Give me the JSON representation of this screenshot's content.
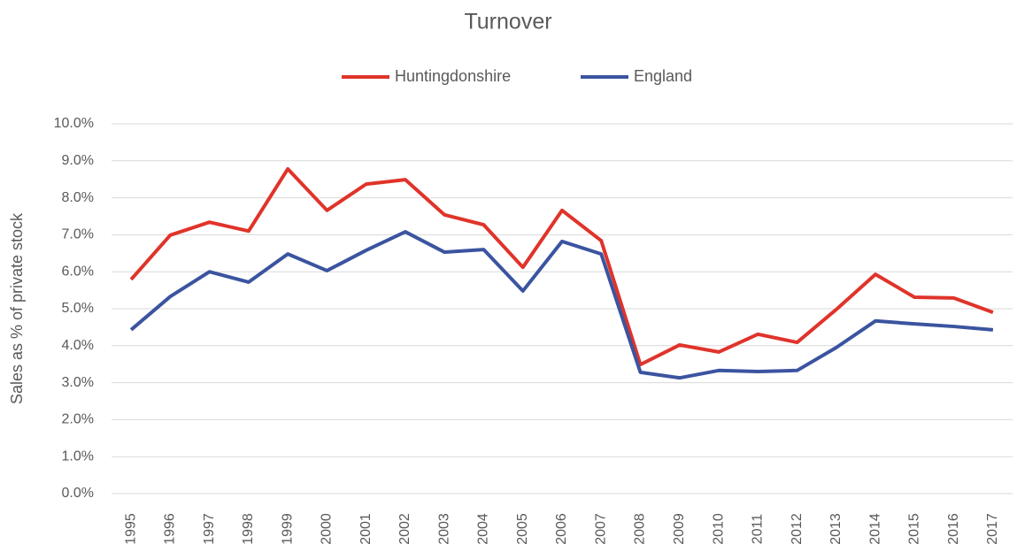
{
  "chart_data": {
    "type": "line",
    "title": "Turnover",
    "y_label": "Sales as % of private stock",
    "categories": [
      "1995",
      "1996",
      "1997",
      "1998",
      "1999",
      "2000",
      "2001",
      "2002",
      "2003",
      "2004",
      "2005",
      "2006",
      "2007",
      "2008",
      "2009",
      "2010",
      "2011",
      "2012",
      "2013",
      "2014",
      "2015",
      "2016",
      "2017"
    ],
    "series": [
      {
        "name": "Huntingdonshire",
        "color": "#e0332a",
        "values": [
          5.79,
          6.99,
          7.34,
          7.1,
          8.78,
          7.66,
          8.37,
          8.49,
          7.54,
          7.27,
          6.12,
          7.66,
          6.84,
          3.49,
          4.02,
          3.83,
          4.31,
          4.09,
          4.98,
          5.93,
          5.31,
          5.29,
          4.9
        ]
      },
      {
        "name": "England",
        "color": "#3b54a0",
        "values": [
          4.43,
          5.33,
          6.0,
          5.72,
          6.48,
          6.03,
          6.58,
          7.08,
          6.53,
          6.6,
          5.48,
          6.82,
          6.48,
          3.28,
          3.13,
          3.33,
          3.3,
          3.33,
          3.95,
          4.67,
          4.59,
          4.52,
          4.43
        ]
      }
    ],
    "ylim": [
      0,
      10
    ],
    "yticks": [
      {
        "value": 0,
        "label": "0.0%"
      },
      {
        "value": 1,
        "label": "1.0%"
      },
      {
        "value": 2,
        "label": "2.0%"
      },
      {
        "value": 3,
        "label": "3.0%"
      },
      {
        "value": 4,
        "label": "4.0%"
      },
      {
        "value": 5,
        "label": "5.0%"
      },
      {
        "value": 6,
        "label": "6.0%"
      },
      {
        "value": 7,
        "label": "7.0%"
      },
      {
        "value": 8,
        "label": "8.0%"
      },
      {
        "value": 9,
        "label": "9.0%"
      },
      {
        "value": 10,
        "label": "10.0%"
      }
    ],
    "grid": true,
    "legend": "top"
  }
}
